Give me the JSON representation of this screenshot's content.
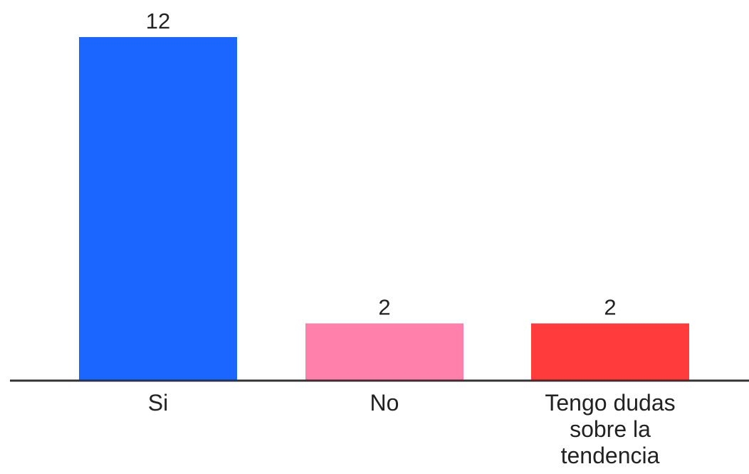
{
  "chart_data": {
    "type": "bar",
    "categories": [
      "Si",
      "No",
      "Tengo dudas sobre la tendencia"
    ],
    "category_lines": [
      [
        "Si"
      ],
      [
        "No"
      ],
      [
        "Tengo dudas",
        "sobre la",
        "tendencia"
      ]
    ],
    "values": [
      12,
      2,
      2
    ],
    "value_labels": [
      "12",
      "2",
      "2"
    ],
    "colors": [
      "#1a66ff",
      "#ff80ab",
      "#ff3b3b"
    ],
    "axis_color": "#333333",
    "title": "",
    "xlabel": "",
    "ylabel": "",
    "ylim": [
      0,
      12
    ],
    "grid": false,
    "legend": "none"
  }
}
